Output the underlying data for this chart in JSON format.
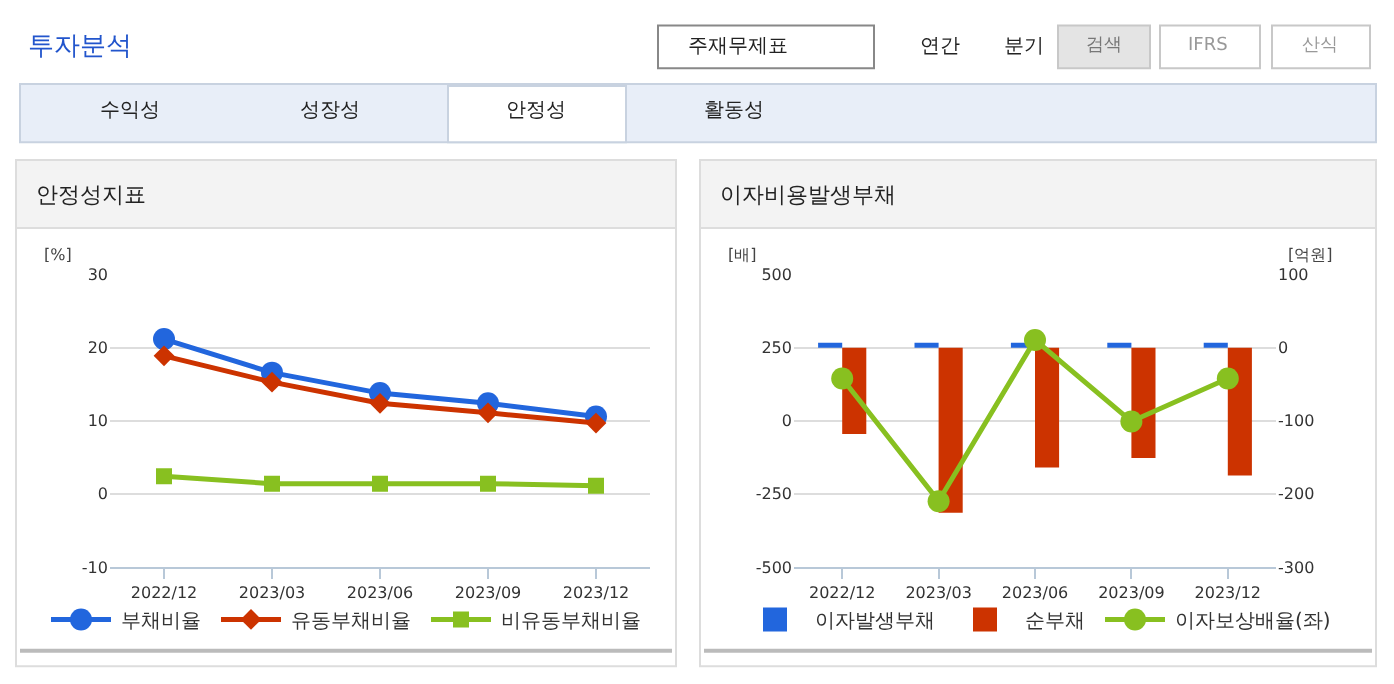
{
  "chart_data": [
    {
      "type": "other",
      "annotations": [
        "투자분석",
        "주재무제표",
        "연간",
        "분기",
        "검색",
        "IFRS",
        "산식",
        "수익성",
        "성장성",
        "안정성",
        "활동성"
      ]
    },
    {
      "type": "line",
      "title": "안정성지표",
      "ylabel": "[%]",
      "categories": [
        "2022/12",
        "2023/03",
        "2023/06",
        "2023/09",
        "2023/12"
      ],
      "series": [
        {
          "name": "부채비율",
          "color": "#2266dd",
          "marker": "circle",
          "values": [
            21.2,
            16.6,
            13.8,
            12.4,
            10.6
          ]
        },
        {
          "name": "유동부채비율",
          "color": "#cc3300",
          "marker": "diamond",
          "values": [
            18.9,
            15.3,
            12.4,
            11.1,
            9.7
          ]
        },
        {
          "name": "비유동부채비율",
          "color": "#88c020",
          "marker": "square",
          "values": [
            2.4,
            1.4,
            1.4,
            1.4,
            1.1
          ]
        }
      ],
      "ylim": [
        -10,
        30
      ],
      "yticks": [
        -10,
        0,
        10,
        20,
        30
      ],
      "grid": "y",
      "legend": "bottom"
    },
    {
      "type": "bar",
      "title": "이자비용발생부채",
      "ylabel": "[배]",
      "y2label": "[억원]",
      "categories": [
        "2022/12",
        "2023/03",
        "2023/06",
        "2023/09",
        "2023/12"
      ],
      "series": [
        {
          "name": "이자발생부채",
          "color": "#2266dd",
          "axis": "y2",
          "values": [
            7,
            7,
            7,
            7,
            7
          ]
        },
        {
          "name": "순부채",
          "color": "#cc3300",
          "axis": "y2",
          "values": [
            -118,
            -226,
            -164,
            -151,
            -175
          ]
        },
        {
          "name": "이자보상배율(좌)",
          "type": "line",
          "color": "#88c020",
          "marker": "circle",
          "values": [
            145,
            -275,
            277,
            -2,
            145
          ]
        }
      ],
      "ylim": [
        -500,
        500
      ],
      "yticks": [
        -500,
        -250,
        0,
        250,
        500
      ],
      "y2lim": [
        -300,
        100
      ],
      "y2ticks": [
        -300,
        -200,
        -100,
        0,
        100
      ],
      "grid": "y",
      "legend": "bottom"
    }
  ]
}
